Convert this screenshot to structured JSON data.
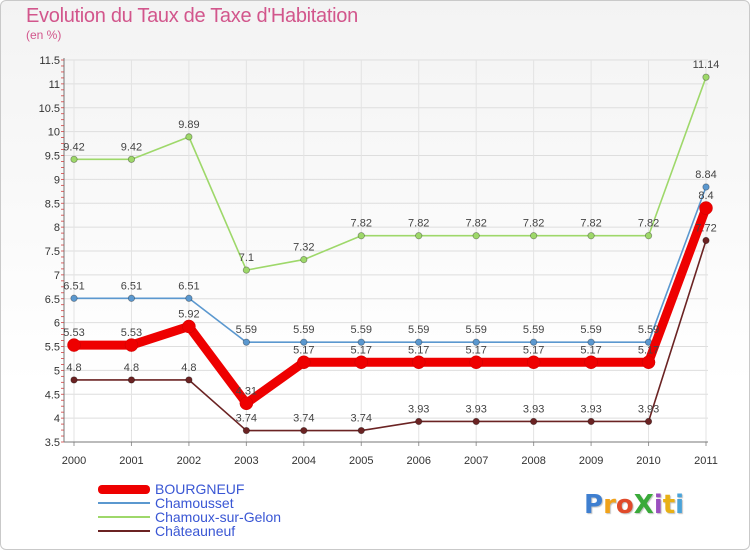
{
  "title": "Evolution du Taux de Taxe d'Habitation",
  "subtitle": "(en %)",
  "logo": {
    "text": "ProXiti",
    "letters": [
      "P",
      "r",
      "o",
      "X",
      "i",
      "t",
      "i"
    ],
    "colors": [
      "#3f7fd0",
      "#f0a21a",
      "#e04a2a",
      "#3aaa3a",
      "#9a4fbf",
      "#e8b016",
      "#49a3da"
    ]
  },
  "chart_data": {
    "type": "line",
    "title": "Evolution du Taux de Taxe d'Habitation",
    "ylabel": "(en %)",
    "x": [
      "2000",
      "2001",
      "2002",
      "2003",
      "2004",
      "2005",
      "2006",
      "2007",
      "2008",
      "2009",
      "2010",
      "2011"
    ],
    "ylim": [
      3.5,
      11.5
    ],
    "yticks": [
      "3.5",
      "4",
      "4.5",
      "5",
      "5.5",
      "6",
      "6.5",
      "7",
      "7.5",
      "8",
      "8.5",
      "9",
      "9.5",
      "10",
      "10.5",
      "11",
      "11.5"
    ],
    "grid": true,
    "legend_position": "bottom-left",
    "series": [
      {
        "name": "BOURGNEUF",
        "color": "#ee0000",
        "values": [
          5.53,
          5.53,
          5.92,
          4.31,
          5.17,
          5.17,
          5.17,
          5.17,
          5.17,
          5.17,
          5.17,
          8.4
        ],
        "labels": [
          "5.53",
          "5.53",
          "5.92",
          "4.31",
          "5.17",
          "5.17",
          "5.17",
          "5.17",
          "5.17",
          "5.17",
          "5.17",
          "8.4"
        ]
      },
      {
        "name": "Chamousset",
        "color": "#5b98cf",
        "values": [
          6.51,
          6.51,
          6.51,
          5.59,
          5.59,
          5.59,
          5.59,
          5.59,
          5.59,
          5.59,
          5.59,
          8.84
        ],
        "labels": [
          "6.51",
          "6.51",
          "6.51",
          "5.59",
          "5.59",
          "5.59",
          "5.59",
          "5.59",
          "5.59",
          "5.59",
          "5.59",
          "8.84"
        ]
      },
      {
        "name": "Chamoux-sur-Gelon",
        "color": "#9ed86a",
        "values": [
          9.42,
          9.42,
          9.89,
          7.1,
          7.32,
          7.82,
          7.82,
          7.82,
          7.82,
          7.82,
          7.82,
          11.14
        ],
        "labels": [
          "9.42",
          "9.42",
          "9.89",
          "7.1",
          "7.32",
          "7.82",
          "7.82",
          "7.82",
          "7.82",
          "7.82",
          "7.82",
          "11.14"
        ]
      },
      {
        "name": "Châteauneuf",
        "color": "#6b2323",
        "values": [
          4.8,
          4.8,
          4.8,
          3.74,
          3.74,
          3.74,
          3.93,
          3.93,
          3.93,
          3.93,
          3.93,
          7.72
        ],
        "labels": [
          "4.8",
          "4.8",
          "4.8",
          "3.74",
          "3.74",
          "3.74",
          "3.93",
          "3.93",
          "3.93",
          "3.93",
          "3.93",
          "7.72"
        ]
      }
    ]
  }
}
